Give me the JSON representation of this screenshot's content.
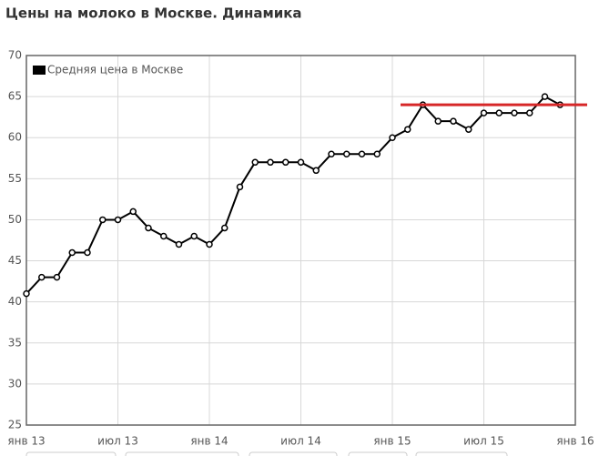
{
  "chart_data": {
    "type": "line",
    "title": "Цены на молоко в Москве. Динамика",
    "x": [
      "2013-01",
      "2013-02",
      "2013-03",
      "2013-04",
      "2013-05",
      "2013-06",
      "2013-07",
      "2013-08",
      "2013-09",
      "2013-10",
      "2013-11",
      "2013-12",
      "2014-01",
      "2014-02",
      "2014-03",
      "2014-04",
      "2014-05",
      "2014-06",
      "2014-07",
      "2014-08",
      "2014-09",
      "2014-10",
      "2014-11",
      "2014-12",
      "2015-01",
      "2015-02",
      "2015-03",
      "2015-04",
      "2015-05",
      "2015-06",
      "2015-07",
      "2015-08",
      "2015-09",
      "2015-10",
      "2015-11",
      "2015-12"
    ],
    "series": [
      {
        "name": "Средняя цена в Москве",
        "color": "#000000",
        "values": [
          41,
          43,
          43,
          46,
          46,
          50,
          50,
          51,
          49,
          48,
          47,
          48,
          47,
          49,
          54,
          57,
          57,
          57,
          57,
          56,
          58,
          58,
          58,
          58,
          60,
          61,
          64,
          62,
          62,
          61,
          63,
          63,
          63,
          63,
          65,
          64
        ]
      }
    ],
    "xlim": [
      "2013-01",
      "2016-01"
    ],
    "xticks": [
      {
        "value": "2013-01",
        "label": "янв 13"
      },
      {
        "value": "2013-07",
        "label": "июл 13"
      },
      {
        "value": "2014-01",
        "label": "янв 14"
      },
      {
        "value": "2014-07",
        "label": "июл 14"
      },
      {
        "value": "2015-01",
        "label": "янв 15"
      },
      {
        "value": "2015-07",
        "label": "июл 15"
      },
      {
        "value": "2016-01",
        "label": "янв 16"
      }
    ],
    "ylim": [
      25,
      70
    ],
    "yticks": [
      25,
      30,
      35,
      40,
      45,
      50,
      55,
      60,
      65,
      70
    ],
    "grid": true,
    "legend": "top-left",
    "reference_line": {
      "value": 64,
      "color": "#d62728"
    }
  }
}
